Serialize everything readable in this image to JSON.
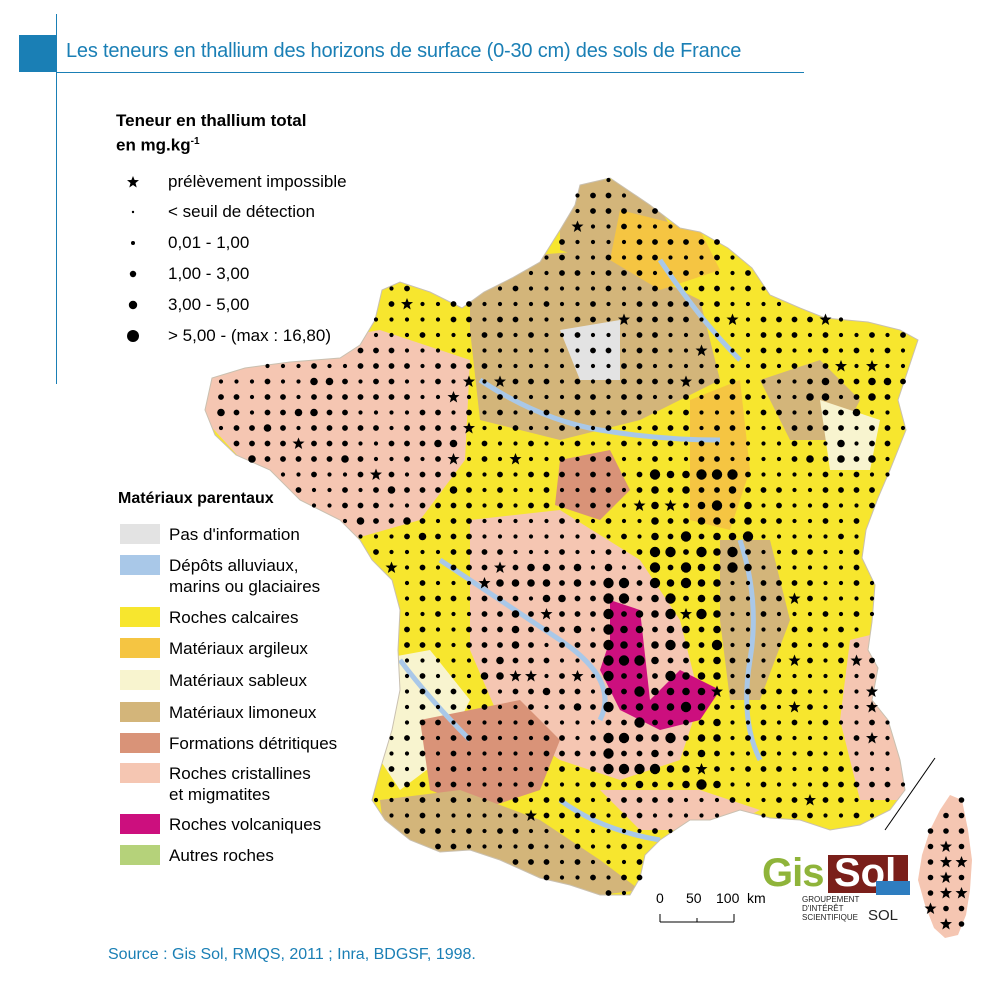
{
  "title": "Les teneurs en thallium des horizons de surface (0-30 cm) des sols de France",
  "legend": {
    "heading_line1": "Teneur en thallium total",
    "heading_line2": "en mg.kg",
    "heading_sup": "-1",
    "symbols": [
      {
        "label": "prélèvement impossible",
        "icon": "star-icon"
      },
      {
        "label": "< seuil de détection",
        "icon": "tiny-dot-icon"
      },
      {
        "label": "0,01 - 1,00",
        "icon": "small-dot-icon"
      },
      {
        "label": "1,00 - 3,00",
        "icon": "medium-dot-icon"
      },
      {
        "label": "3,00 - 5,00",
        "icon": "large-dot-icon"
      },
      {
        "label": "> 5,00 - (max : 16,80)",
        "icon": "xlarge-dot-icon"
      }
    ]
  },
  "materials": {
    "heading": "Matériaux parentaux",
    "items": [
      {
        "label": "Pas d'information",
        "color": "#e3e3e3"
      },
      {
        "label": "Dépôts alluviaux,",
        "label2": "marins ou glaciaires",
        "color": "#a9c8e8"
      },
      {
        "label": "Roches calcaires",
        "color": "#f7e62e"
      },
      {
        "label": "Matériaux argileux",
        "color": "#f5c542"
      },
      {
        "label": "Matériaux sableux",
        "color": "#f8f4cf"
      },
      {
        "label": "Matériaux limoneux",
        "color": "#d3b57a"
      },
      {
        "label": "Formations détritiques",
        "color": "#d99378"
      },
      {
        "label": "Roches cristallines",
        "label2": "et migmatites",
        "color": "#f5c6b2"
      },
      {
        "label": "Roches volcaniques",
        "color": "#cc0f7e"
      },
      {
        "label": "Autres roches",
        "color": "#b5d27a"
      }
    ]
  },
  "scale": {
    "t0": "0",
    "t1": "50",
    "t2": "100",
    "unit": "km"
  },
  "logo": {
    "gis": "Gis",
    "sol": "Sol",
    "sub1": "GROUPEMENT",
    "sub2": "D'INTÉRÊT",
    "sub3": "SCIENTIFIQUE",
    "sol2": "SOL"
  },
  "source": "Source : Gis Sol, RMQS, 2011 ; Inra, BDGSF, 1998."
}
